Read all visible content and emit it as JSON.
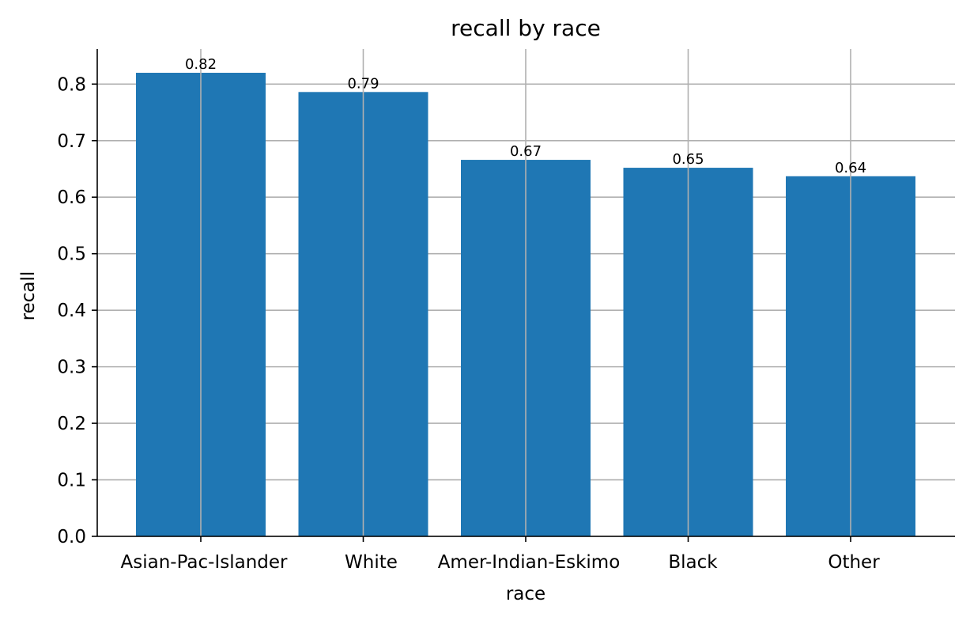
{
  "chart_data": {
    "type": "bar",
    "title": "recall by race",
    "xlabel": "race",
    "ylabel": "recall",
    "categories": [
      "Asian-Pac-Islander",
      "White",
      "Amer-Indian-Eskimo",
      "Black",
      "Other"
    ],
    "values": [
      0.82,
      0.786,
      0.666,
      0.652,
      0.637
    ],
    "data_labels": [
      "0.82",
      "0.79",
      "0.67",
      "0.65",
      "0.64"
    ],
    "yticks": [
      "0.0",
      "0.1",
      "0.2",
      "0.3",
      "0.4",
      "0.5",
      "0.6",
      "0.7",
      "0.8"
    ],
    "ylim": [
      0,
      0.862
    ],
    "grid": true,
    "bar_color": "#1f77b4",
    "grid_color": "#b0b0b0"
  }
}
